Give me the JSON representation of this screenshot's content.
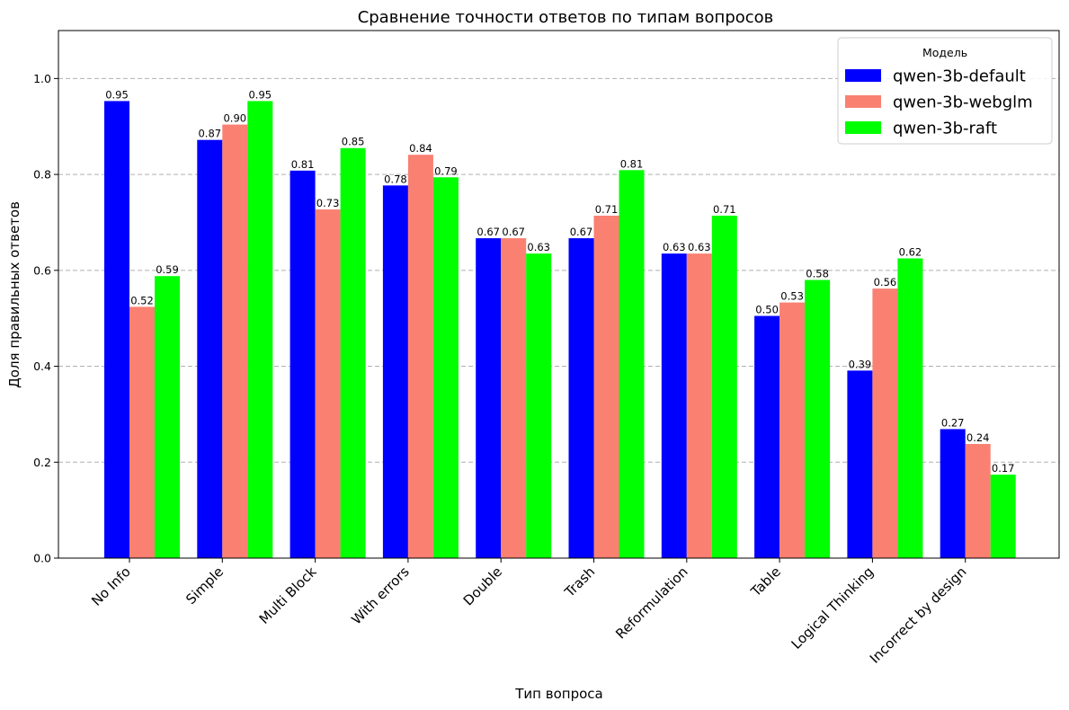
{
  "chart_data": {
    "type": "bar",
    "title": "Сравнение точности ответов по типам вопросов",
    "xlabel": "Тип вопроса",
    "ylabel": "Доля правильных ответов",
    "ylim": [
      0,
      1.1
    ],
    "yticks": [
      "0.0",
      "0.2",
      "0.4",
      "0.6",
      "0.8",
      "1.0"
    ],
    "grid": true,
    "legend": {
      "title": "Модель",
      "placement": "top-right"
    },
    "categories": [
      "No Info",
      "Simple",
      "Multi Block",
      "With errors",
      "Double",
      "Trash",
      "Reformulation",
      "Table",
      "Logical Thinking",
      "Incorrect by design"
    ],
    "series": [
      {
        "name": "qwen-3b-default",
        "color": "#0000ff",
        "values": [
          0.953,
          0.872,
          0.808,
          0.777,
          0.667,
          0.667,
          0.635,
          0.505,
          0.391,
          0.269
        ],
        "labels": [
          "0.95",
          "0.87",
          "0.81",
          "0.78",
          "0.67",
          "0.67",
          "0.63",
          "0.50",
          "0.39",
          "0.27"
        ]
      },
      {
        "name": "qwen-3b-webglm",
        "color": "#fa8072",
        "values": [
          0.524,
          0.904,
          0.727,
          0.841,
          0.667,
          0.714,
          0.635,
          0.533,
          0.562,
          0.238
        ],
        "labels": [
          "0.52",
          "0.90",
          "0.73",
          "0.84",
          "0.67",
          "0.71",
          "0.63",
          "0.53",
          "0.56",
          "0.24"
        ]
      },
      {
        "name": "qwen-3b-raft",
        "color": "#00ff00",
        "values": [
          0.588,
          0.953,
          0.855,
          0.794,
          0.635,
          0.809,
          0.714,
          0.58,
          0.625,
          0.174
        ],
        "labels": [
          "0.59",
          "0.95",
          "0.85",
          "0.79",
          "0.63",
          "0.81",
          "0.71",
          "0.58",
          "0.62",
          "0.17"
        ]
      }
    ]
  }
}
